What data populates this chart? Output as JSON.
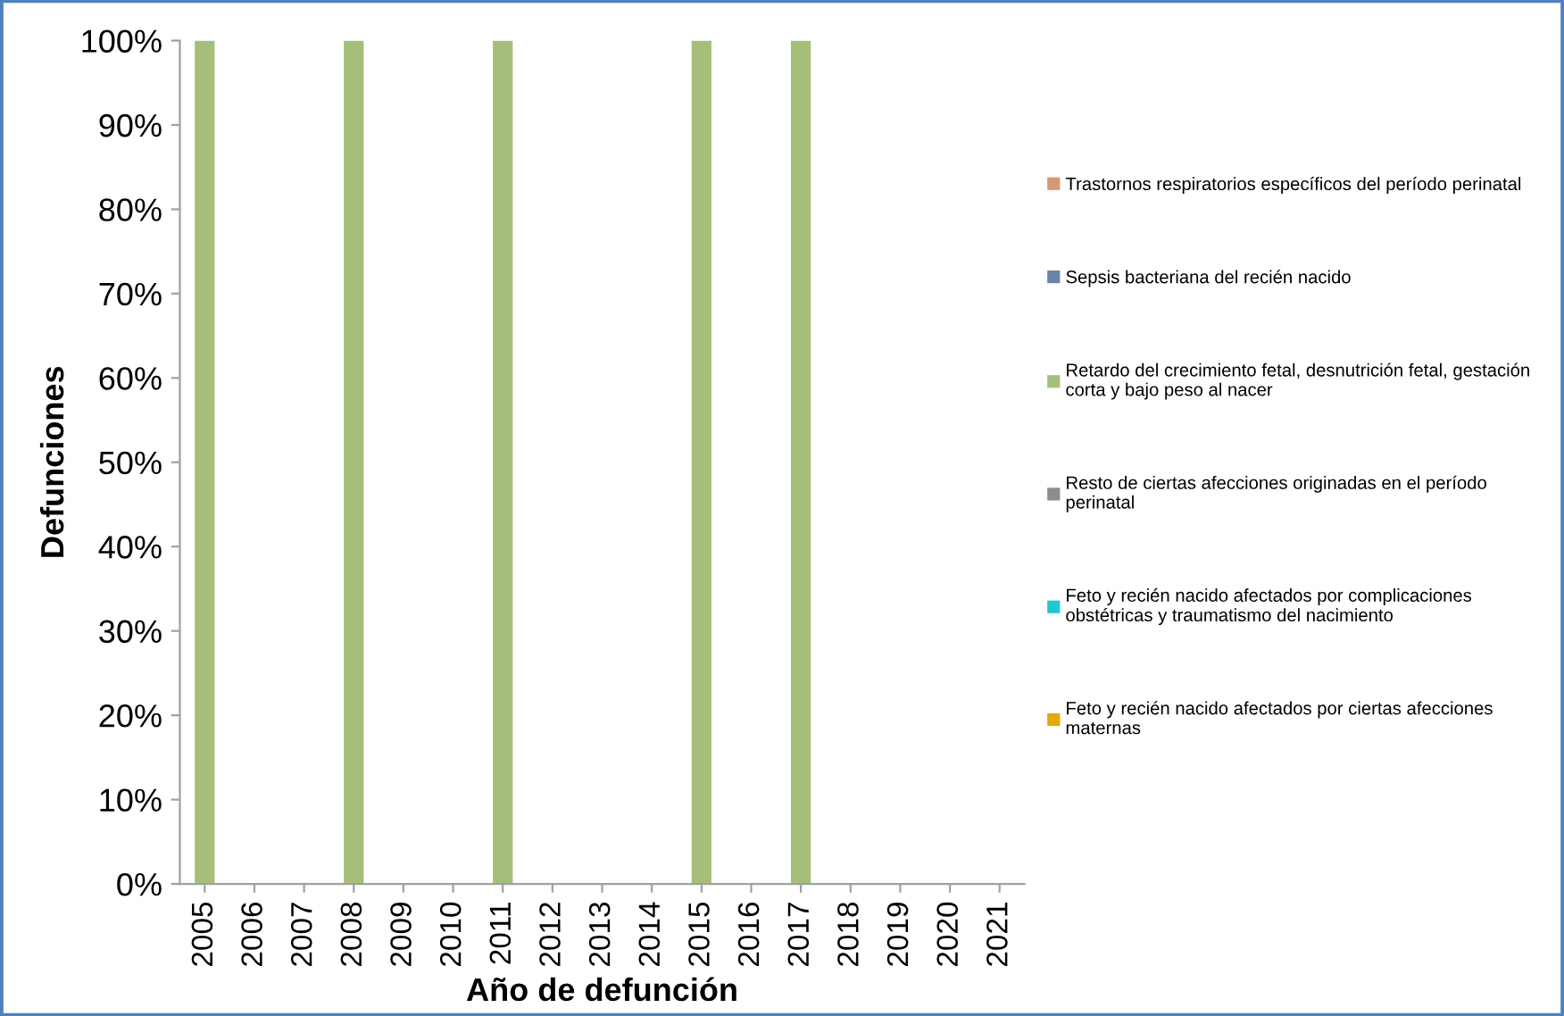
{
  "chart_data": {
    "type": "bar",
    "stacked": true,
    "xlabel": "Año de defunción",
    "ylabel": "Defunciones",
    "categories": [
      "2005",
      "2006",
      "2007",
      "2008",
      "2009",
      "2010",
      "2011",
      "2012",
      "2013",
      "2014",
      "2015",
      "2016",
      "2017",
      "2018",
      "2019",
      "2020",
      "2021"
    ],
    "ylim": [
      0,
      100
    ],
    "yticks": [
      {
        "value": 0,
        "label": "0%"
      },
      {
        "value": 10,
        "label": "10%"
      },
      {
        "value": 20,
        "label": "20%"
      },
      {
        "value": 30,
        "label": "30%"
      },
      {
        "value": 40,
        "label": "40%"
      },
      {
        "value": 50,
        "label": "50%"
      },
      {
        "value": 60,
        "label": "60%"
      },
      {
        "value": 70,
        "label": "70%"
      },
      {
        "value": 80,
        "label": "80%"
      },
      {
        "value": 90,
        "label": "90%"
      },
      {
        "value": 100,
        "label": "100%"
      }
    ],
    "grid": false,
    "legend": "right",
    "series": [
      {
        "name": "Feto y recién nacido afectados por ciertas afecciones\nmaternas",
        "color": "#e8a800",
        "values": [
          0,
          0,
          0,
          0,
          0,
          0,
          0,
          0,
          0,
          0,
          0,
          0,
          0,
          0,
          0,
          0,
          0
        ]
      },
      {
        "name": "Feto y recién nacido afectados por complicaciones\nobstétricas y traumatismo del nacimiento",
        "color": "#1fc8d0",
        "values": [
          0,
          0,
          0,
          0,
          0,
          0,
          0,
          0,
          0,
          0,
          0,
          0,
          0,
          0,
          0,
          0,
          0
        ]
      },
      {
        "name": "Resto de ciertas afecciones originadas en el período\nperinatal",
        "color": "#8c8c8c",
        "values": [
          0,
          0,
          0,
          0,
          0,
          0,
          0,
          0,
          0,
          0,
          0,
          0,
          0,
          0,
          0,
          0,
          0
        ]
      },
      {
        "name": "Retardo del crecimiento fetal, desnutrición fetal, gestación\ncorta y bajo peso al nacer",
        "color": "#a5bf7a",
        "values": [
          100,
          0,
          0,
          100,
          0,
          0,
          100,
          0,
          0,
          0,
          100,
          0,
          100,
          0,
          0,
          0,
          0
        ]
      },
      {
        "name": "Sepsis bacteriana del recién nacido",
        "color": "#6a84a8",
        "values": [
          0,
          0,
          0,
          0,
          0,
          0,
          0,
          0,
          0,
          0,
          0,
          0,
          0,
          0,
          0,
          0,
          0
        ]
      },
      {
        "name": "Trastornos respiratorios específicos del período perinatal",
        "color": "#d49a74",
        "values": [
          0,
          0,
          0,
          0,
          0,
          0,
          0,
          0,
          0,
          0,
          0,
          0,
          0,
          0,
          0,
          0,
          0
        ]
      }
    ]
  }
}
